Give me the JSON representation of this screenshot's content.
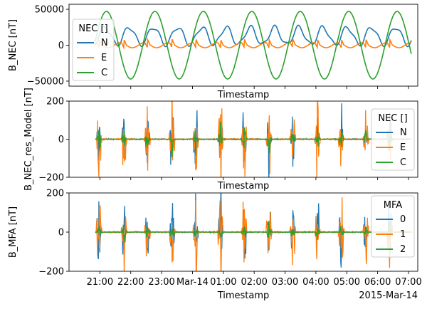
{
  "chart_data": [
    {
      "type": "line",
      "ylabel": "B_NEC [nT]",
      "xlabel": "Timestamp",
      "ylim": [
        -57000,
        57000
      ],
      "yticks": [
        {
          "value": 50000,
          "label": "50000"
        },
        {
          "value": 0,
          "label": "0"
        },
        {
          "value": -50000,
          "label": "−50000"
        }
      ],
      "legend": {
        "title": "NEC []",
        "placement": "top-left"
      },
      "series": [
        {
          "name": "N",
          "color": "#1f77b4",
          "kind": "nec_n"
        },
        {
          "name": "E",
          "color": "#ff7f0e",
          "kind": "nec_e"
        },
        {
          "name": "C",
          "color": "#2ca02c",
          "kind": "nec_c"
        }
      ]
    },
    {
      "type": "line",
      "ylabel": "B_NEC_res_Model [nT]",
      "xlabel": "Timestamp",
      "ylim": [
        -200,
        200
      ],
      "yticks": [
        {
          "value": 200,
          "label": "200"
        },
        {
          "value": 0,
          "label": "0"
        },
        {
          "value": -200,
          "label": "−200"
        }
      ],
      "legend": {
        "title": "NEC []",
        "placement": "right"
      },
      "series": [
        {
          "name": "N",
          "color": "#1f77b4",
          "kind": "res_n"
        },
        {
          "name": "E",
          "color": "#ff7f0e",
          "kind": "res_e"
        },
        {
          "name": "C",
          "color": "#2ca02c",
          "kind": "res_c"
        }
      ]
    },
    {
      "type": "line",
      "ylabel": "B_MFA [nT]",
      "xlabel": "Timestamp",
      "ylim": [
        -200,
        200
      ],
      "yticks": [
        {
          "value": 200,
          "label": "200"
        },
        {
          "value": 0,
          "label": "0"
        },
        {
          "value": -200,
          "label": "−200"
        }
      ],
      "legend": {
        "title": "MFA",
        "placement": "top-right"
      },
      "series": [
        {
          "name": "0",
          "color": "#1f77b4",
          "kind": "mfa_0"
        },
        {
          "name": "1",
          "color": "#ff7f0e",
          "kind": "mfa_1"
        },
        {
          "name": "2",
          "color": "#2ca02c",
          "kind": "mfa_2"
        }
      ]
    }
  ],
  "x_axis": {
    "range_hours": [
      20.0,
      31.3
    ],
    "ticks": [
      {
        "value": 21,
        "label": "21:00"
      },
      {
        "value": 22,
        "label": "22:00"
      },
      {
        "value": 23,
        "label": "23:00"
      },
      {
        "value": 24,
        "label": "Mar-14"
      },
      {
        "value": 25,
        "label": "01:00"
      },
      {
        "value": 26,
        "label": "02:00"
      },
      {
        "value": 27,
        "label": "03:00"
      },
      {
        "value": 28,
        "label": "04:00"
      },
      {
        "value": 29,
        "label": "05:00"
      },
      {
        "value": 30,
        "label": "06:00"
      },
      {
        "value": 31,
        "label": "07:00"
      }
    ],
    "offset_label": "2015-Mar-14",
    "label": "Timestamp"
  },
  "orbit": {
    "period_hours": 1.57,
    "first_polar_crossing_hours": 20.97,
    "crossing_times_hours": [
      20.97,
      21.78,
      22.54,
      23.34,
      24.11,
      24.91,
      25.68,
      26.48,
      27.25,
      28.05,
      28.82,
      29.62,
      30.39
    ]
  }
}
